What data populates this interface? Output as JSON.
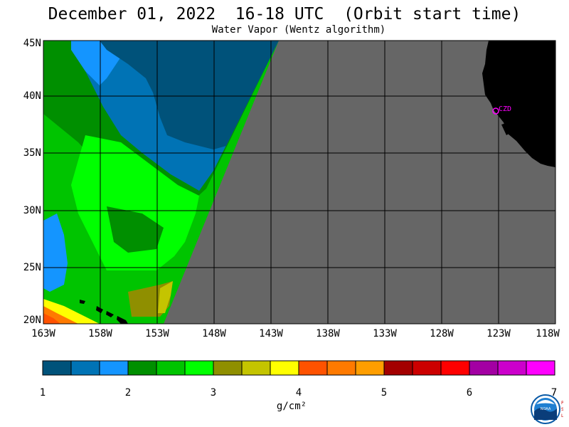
{
  "header": {
    "title": "December 01, 2022  16-18 UTC  (Orbit start time)",
    "subtitle": "Water Vapor (Wentz algorithm)"
  },
  "map": {
    "lat_labels": [
      "45N",
      "40N",
      "35N",
      "30N",
      "25N",
      "20N"
    ],
    "lon_labels": [
      "163W",
      "158W",
      "153W",
      "148W",
      "143W",
      "138W",
      "133W",
      "128W",
      "123W",
      "118W"
    ],
    "lat_range": [
      20,
      45
    ],
    "lon_range": [
      -163,
      -118
    ],
    "station_label": "CZD",
    "no_data_color": "#666666",
    "land_color": "#000000",
    "grid_color": "#000000"
  },
  "colorbar": {
    "ticks": [
      "1",
      "2",
      "3",
      "4",
      "5",
      "6",
      "7"
    ],
    "unit": "g/cm²",
    "colors": [
      "#00527a",
      "#0073b5",
      "#1495ff",
      "#008f00",
      "#00c400",
      "#00ff00",
      "#8f8f00",
      "#c4c400",
      "#ffff00",
      "#ff5200",
      "#ff7a00",
      "#ff9e00",
      "#a30000",
      "#cc0000",
      "#ff0000",
      "#a300a3",
      "#cc00cc",
      "#ff00ff"
    ]
  },
  "logo": {
    "noaa_text": "NOAA",
    "psl_letters": [
      "P",
      "S",
      "L"
    ]
  }
}
